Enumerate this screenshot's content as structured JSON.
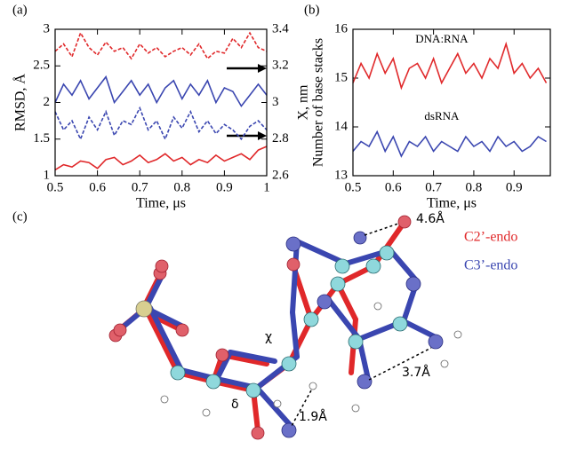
{
  "chart_data": [
    {
      "type": "line",
      "label": "(a)",
      "x_label": "Time, μs",
      "y_label": "RMSD, Å",
      "y2_label": "X, nm",
      "x": [
        0.5,
        0.52,
        0.54,
        0.56,
        0.58,
        0.6,
        0.62,
        0.64,
        0.66,
        0.68,
        0.7,
        0.72,
        0.74,
        0.76,
        0.78,
        0.8,
        0.82,
        0.84,
        0.86,
        0.88,
        0.9,
        0.92,
        0.94,
        0.96,
        0.98,
        1
      ],
      "xlim": [
        0.5,
        1
      ],
      "xticks": [
        0.5,
        0.6,
        0.7,
        0.8,
        0.9,
        1
      ],
      "ylim": [
        1,
        3
      ],
      "yticks": [
        1,
        1.5,
        2,
        2.5,
        3
      ],
      "y2lim": [
        2.6,
        3.4
      ],
      "y2ticks": [
        2.6,
        2.8,
        3,
        3.2,
        3.4
      ],
      "series": [
        {
          "color": "#e0282a",
          "linestyle": "solid",
          "values": [
            1.08,
            1.15,
            1.12,
            1.2,
            1.18,
            1.1,
            1.22,
            1.25,
            1.15,
            1.2,
            1.28,
            1.18,
            1.22,
            1.3,
            1.2,
            1.25,
            1.15,
            1.22,
            1.18,
            1.28,
            1.2,
            1.25,
            1.3,
            1.22,
            1.35,
            1.4
          ]
        },
        {
          "color": "#3a46b0",
          "linestyle": "solid",
          "values": [
            2.0,
            2.25,
            2.1,
            2.3,
            2.05,
            2.2,
            2.35,
            2.0,
            2.15,
            2.3,
            2.1,
            2.25,
            2.0,
            2.2,
            2.3,
            2.05,
            2.25,
            2.1,
            2.3,
            2.0,
            2.2,
            2.15,
            1.95,
            2.1,
            2.25,
            2.1
          ]
        },
        {
          "color": "#3a46b0",
          "linestyle": "dashed",
          "axis": "y2",
          "values": [
            2.95,
            2.85,
            2.9,
            2.8,
            2.92,
            2.85,
            2.95,
            2.82,
            2.9,
            2.88,
            2.97,
            2.85,
            2.9,
            2.8,
            2.92,
            2.86,
            2.95,
            2.84,
            2.9,
            2.83,
            2.88,
            2.85,
            2.8,
            2.87,
            2.9,
            2.85
          ]
        },
        {
          "color": "#e0282a",
          "linestyle": "dashed",
          "axis": "y2",
          "values": [
            3.28,
            3.32,
            3.25,
            3.38,
            3.3,
            3.26,
            3.33,
            3.28,
            3.3,
            3.24,
            3.32,
            3.27,
            3.3,
            3.25,
            3.28,
            3.3,
            3.26,
            3.32,
            3.24,
            3.28,
            3.27,
            3.35,
            3.3,
            3.38,
            3.3,
            3.28
          ]
        }
      ]
    },
    {
      "type": "line",
      "label": "(b)",
      "x_label": "Time, μs",
      "y_label": "Number of base stacks",
      "x": [
        0.5,
        0.52,
        0.54,
        0.56,
        0.58,
        0.6,
        0.62,
        0.64,
        0.66,
        0.68,
        0.7,
        0.72,
        0.74,
        0.76,
        0.78,
        0.8,
        0.82,
        0.84,
        0.86,
        0.88,
        0.9,
        0.92,
        0.94,
        0.96,
        0.98
      ],
      "xlim": [
        0.5,
        0.99
      ],
      "xticks": [
        0.5,
        0.6,
        0.7,
        0.8,
        0.9
      ],
      "ylim": [
        13,
        16
      ],
      "yticks": [
        13,
        14,
        15,
        16
      ],
      "series": [
        {
          "name": "DNA:RNA",
          "color": "#e0282a",
          "linestyle": "solid",
          "values": [
            14.9,
            15.3,
            15.0,
            15.5,
            15.1,
            15.4,
            14.8,
            15.2,
            15.3,
            15.0,
            15.4,
            14.9,
            15.2,
            15.5,
            15.1,
            15.3,
            15.0,
            15.4,
            15.2,
            15.7,
            15.1,
            15.3,
            15.0,
            15.2,
            14.9
          ]
        },
        {
          "name": "dsRNA",
          "color": "#3a46b0",
          "linestyle": "solid",
          "values": [
            13.5,
            13.7,
            13.6,
            13.9,
            13.5,
            13.8,
            13.4,
            13.7,
            13.6,
            13.8,
            13.5,
            13.7,
            13.6,
            13.5,
            13.8,
            13.6,
            13.7,
            13.5,
            13.8,
            13.6,
            13.7,
            13.5,
            13.6,
            13.8,
            13.7
          ]
        }
      ]
    }
  ],
  "diagram": {
    "label": "(c)",
    "legend": [
      "C2’-endo",
      "C3’-endo"
    ],
    "annotations": {
      "distance_top": "4.6Å",
      "distance_right": "3.7Å",
      "distance_bottom": "1.9Å",
      "chi": "χ",
      "delta": "δ"
    }
  }
}
